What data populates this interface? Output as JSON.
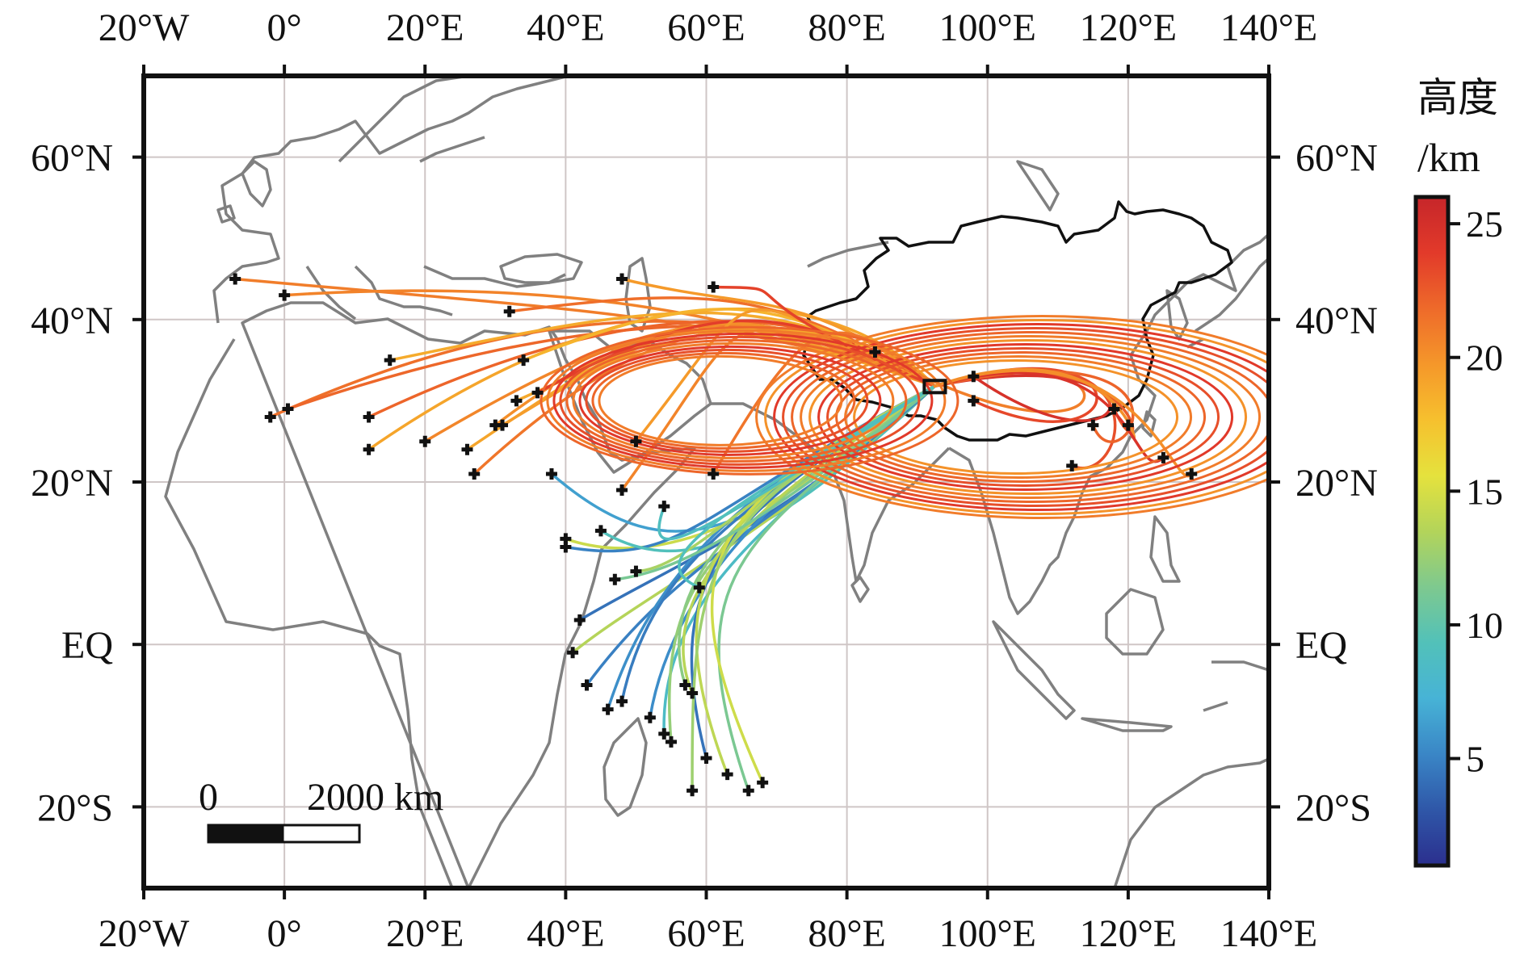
{
  "map": {
    "lon_range": [
      -20,
      140
    ],
    "lat_range": [
      -30,
      70
    ],
    "lon_ticks": [
      {
        "value": -20,
        "label": "20°W"
      },
      {
        "value": 0,
        "label": "0°"
      },
      {
        "value": 20,
        "label": "20°E"
      },
      {
        "value": 40,
        "label": "40°E"
      },
      {
        "value": 60,
        "label": "60°E"
      },
      {
        "value": 80,
        "label": "80°E"
      },
      {
        "value": 100,
        "label": "100°E"
      },
      {
        "value": 120,
        "label": "120°E"
      },
      {
        "value": 140,
        "label": "140°E"
      }
    ],
    "lat_ticks": [
      {
        "value": 60,
        "label": "60°N"
      },
      {
        "value": 40,
        "label": "40°N"
      },
      {
        "value": 20,
        "label": "20°N"
      },
      {
        "value": 0,
        "label": "EQ"
      },
      {
        "value": -20,
        "label": "20°S"
      }
    ],
    "grid": true,
    "source_box": {
      "lon": [
        91,
        94
      ],
      "lat": [
        31,
        32.5
      ]
    },
    "scale_bar": {
      "label_start": "0",
      "label_end": "2000 km"
    },
    "colors": {
      "coast": "#808080",
      "grid": "#cfc6c6",
      "china_border": "#111111",
      "frame": "#111111"
    }
  },
  "colorbar": {
    "title_line1": "高度",
    "title_line2": "/km",
    "range": [
      1,
      26
    ],
    "ticks": [
      {
        "value": 25,
        "label": "25"
      },
      {
        "value": 20,
        "label": "20"
      },
      {
        "value": 15,
        "label": "15"
      },
      {
        "value": 10,
        "label": "10"
      },
      {
        "value": 5,
        "label": "5"
      }
    ],
    "stops": [
      "#2b2f8e",
      "#2f57a8",
      "#3a86c6",
      "#47b3d6",
      "#52c1b9",
      "#7ec98f",
      "#b3d45a",
      "#e5e23d",
      "#f6c02e",
      "#f5972a",
      "#ee6a2a",
      "#e23a2a",
      "#c6262a"
    ]
  },
  "chart_data": {
    "type": "trajectory map",
    "units": "km",
    "origin": {
      "lon": 92.5,
      "lat": 31.8
    },
    "trajectory_groups": [
      {
        "name": "westward high-altitude",
        "altitude_km": [
          18,
          24
        ],
        "endpoints": [
          [
            -7,
            45
          ],
          [
            0,
            43
          ],
          [
            -2,
            28
          ],
          [
            0.5,
            29
          ],
          [
            12,
            28
          ],
          [
            12,
            24
          ],
          [
            15,
            35
          ],
          [
            20,
            25
          ],
          [
            26,
            24
          ],
          [
            27,
            21
          ],
          [
            30,
            27
          ],
          [
            31,
            27
          ],
          [
            32,
            41
          ],
          [
            33,
            30
          ],
          [
            34,
            35
          ],
          [
            36,
            31
          ],
          [
            48,
            19
          ],
          [
            48,
            45
          ],
          [
            50,
            25
          ],
          [
            61,
            44
          ],
          [
            61,
            21
          ]
        ]
      },
      {
        "name": "southwestward low-altitude",
        "altitude_km": [
          4,
          15
        ],
        "endpoints": [
          [
            38,
            21
          ],
          [
            40,
            13
          ],
          [
            40,
            12
          ],
          [
            45,
            14
          ],
          [
            42,
            3
          ],
          [
            41,
            -1
          ],
          [
            43,
            -5
          ],
          [
            46,
            -8
          ],
          [
            48,
            -7
          ],
          [
            52,
            -9
          ],
          [
            54,
            -11
          ],
          [
            55,
            -12
          ],
          [
            57,
            -5
          ],
          [
            58,
            -6
          ],
          [
            60,
            -14
          ],
          [
            63,
            -16
          ],
          [
            66,
            -18
          ],
          [
            68,
            -17
          ],
          [
            58,
            -18
          ],
          [
            50,
            9
          ],
          [
            47,
            8
          ],
          [
            54,
            17
          ],
          [
            59,
            7
          ]
        ]
      },
      {
        "name": "eastward anticyclonic loop",
        "altitude_km": [
          20,
          25
        ],
        "endpoints": [
          [
            84,
            36
          ],
          [
            98,
            33
          ],
          [
            98,
            30
          ],
          [
            112,
            22
          ],
          [
            115,
            27
          ],
          [
            118,
            29
          ],
          [
            120,
            27
          ],
          [
            125,
            23
          ],
          [
            129,
            21
          ]
        ]
      }
    ]
  }
}
